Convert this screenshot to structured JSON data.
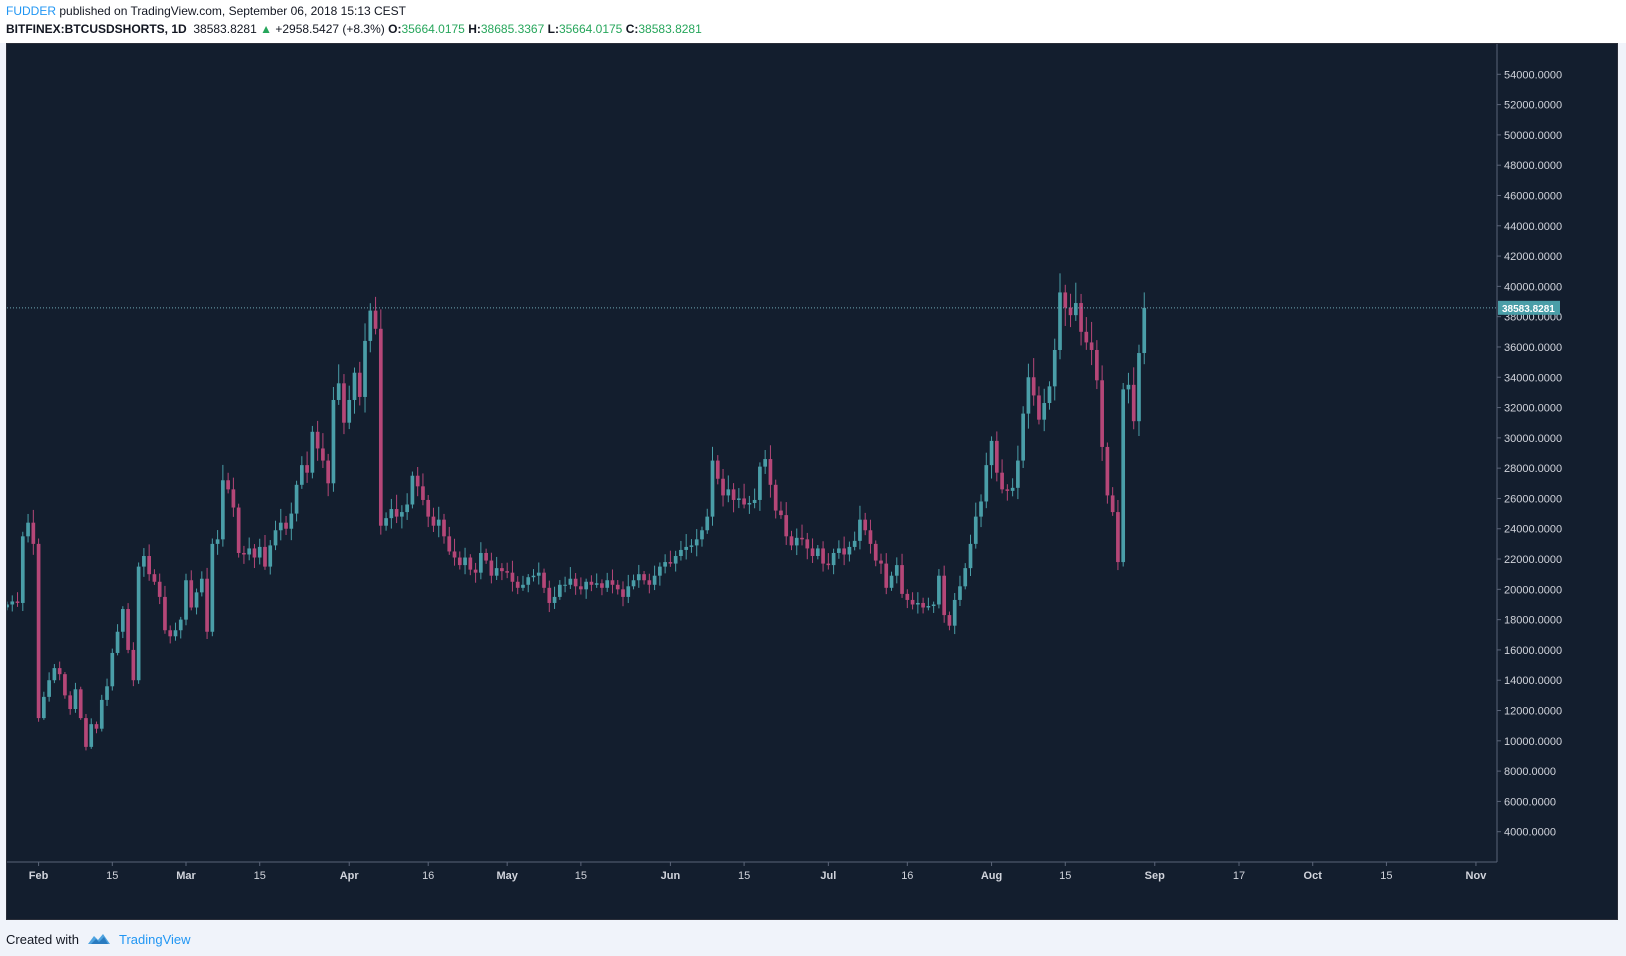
{
  "header": {
    "author": "FUDDER",
    "published_text": "published on TradingView.com, September 06, 2018 15:13 CEST",
    "symbol": "BITFINEX:BTCUSDSHORTS, 1D",
    "last": "38583.8281",
    "change": "+2958.5427 (+8.3%)",
    "o_label": "O:",
    "o_value": "35664.0175",
    "h_label": "H:",
    "h_value": "38685.3367",
    "l_label": "L:",
    "l_value": "35664.0175",
    "c_label": "C:",
    "c_value": "38583.8281"
  },
  "footer": {
    "created_with": "Created with",
    "brand": "TradingView"
  },
  "colors": {
    "background": "#131e2e",
    "up": "#4a9ea8",
    "down": "#b54778",
    "axis_text": "#d1d4dc",
    "price_line": "#6fa7b3"
  },
  "chart_data": {
    "type": "candlestick",
    "symbol": "BITFINEX:BTCUSDSHORTS",
    "interval": "1D",
    "last_price_label": "38583.8281",
    "y_axis": {
      "min": 2000,
      "max": 56000,
      "ticks": [
        "4000.0000",
        "6000.0000",
        "8000.0000",
        "10000.0000",
        "12000.0000",
        "14000.0000",
        "16000.0000",
        "18000.0000",
        "20000.0000",
        "22000.0000",
        "24000.0000",
        "26000.0000",
        "28000.0000",
        "30000.0000",
        "32000.0000",
        "34000.0000",
        "36000.0000",
        "38000.0000",
        "40000.0000",
        "42000.0000",
        "44000.0000",
        "46000.0000",
        "48000.0000",
        "50000.0000",
        "52000.0000",
        "54000.0000"
      ],
      "tick_values": [
        4000,
        6000,
        8000,
        10000,
        12000,
        14000,
        16000,
        18000,
        20000,
        22000,
        24000,
        26000,
        28000,
        30000,
        32000,
        34000,
        36000,
        38000,
        40000,
        42000,
        44000,
        46000,
        48000,
        50000,
        52000,
        54000
      ]
    },
    "x_axis": {
      "start_date": "2018-01-26",
      "end_date": "2018-11-05",
      "ticks": [
        {
          "date": "2018-02-01",
          "label": "Feb",
          "bold": true
        },
        {
          "date": "2018-02-15",
          "label": "15",
          "bold": false
        },
        {
          "date": "2018-03-01",
          "label": "Mar",
          "bold": true
        },
        {
          "date": "2018-03-15",
          "label": "15",
          "bold": false
        },
        {
          "date": "2018-04-01",
          "label": "Apr",
          "bold": true
        },
        {
          "date": "2018-04-16",
          "label": "16",
          "bold": false
        },
        {
          "date": "2018-05-01",
          "label": "May",
          "bold": true
        },
        {
          "date": "2018-05-15",
          "label": "15",
          "bold": false
        },
        {
          "date": "2018-06-01",
          "label": "Jun",
          "bold": true
        },
        {
          "date": "2018-06-15",
          "label": "15",
          "bold": false
        },
        {
          "date": "2018-07-01",
          "label": "Jul",
          "bold": true
        },
        {
          "date": "2018-07-16",
          "label": "16",
          "bold": false
        },
        {
          "date": "2018-08-01",
          "label": "Aug",
          "bold": true
        },
        {
          "date": "2018-08-15",
          "label": "15",
          "bold": false
        },
        {
          "date": "2018-09-01",
          "label": "Sep",
          "bold": true
        },
        {
          "date": "2018-09-17",
          "label": "17",
          "bold": false
        },
        {
          "date": "2018-10-01",
          "label": "Oct",
          "bold": true
        },
        {
          "date": "2018-10-15",
          "label": "15",
          "bold": false
        },
        {
          "date": "2018-11-01",
          "label": "Nov",
          "bold": true
        }
      ]
    },
    "close_series": {
      "first_date": "2018-01-26",
      "closes": [
        19000,
        19200,
        19100,
        23500,
        24400,
        23000,
        11500,
        12900,
        14000,
        14800,
        14400,
        13000,
        12100,
        13400,
        11500,
        9600,
        11100,
        10800,
        12700,
        13600,
        15800,
        17200,
        18700,
        16000,
        14000,
        21500,
        22200,
        21000,
        20500,
        19500,
        17300,
        16900,
        17300,
        18000,
        20600,
        18800,
        19800,
        20700,
        17200,
        23000,
        23300,
        27200,
        26600,
        25400,
        22400,
        22300,
        22700,
        22100,
        22800,
        21500,
        22900,
        23900,
        24400,
        24000,
        25000,
        26900,
        28200,
        27700,
        30400,
        29300,
        28500,
        27000,
        32500,
        33600,
        31000,
        32500,
        34300,
        32700,
        36400,
        38400,
        37200,
        24200,
        24700,
        25300,
        24800,
        25100,
        25600,
        27500,
        26800,
        25900,
        24800,
        24200,
        24600,
        23500,
        22500,
        22100,
        21600,
        22100,
        21300,
        21100,
        22400,
        21900,
        20900,
        21400,
        21200,
        21100,
        20500,
        20100,
        20300,
        20800,
        20900,
        21100,
        20100,
        19100,
        19500,
        20300,
        20300,
        20700,
        20200,
        20000,
        20500,
        20300,
        20400,
        20100,
        20600,
        20300,
        20000,
        19500,
        20200,
        20600,
        21000,
        20600,
        20300,
        20900,
        21500,
        21800,
        21700,
        22200,
        22600,
        22800,
        22900,
        23300,
        23900,
        24800,
        28500,
        27300,
        26200,
        26600,
        25900,
        26000,
        25600,
        25700,
        25900,
        28100,
        28600,
        26900,
        25200,
        24900,
        23500,
        22900,
        23400,
        23300,
        22700,
        22200,
        22700,
        21700,
        21600,
        22400,
        22700,
        22300,
        22800,
        23200,
        24600,
        23900,
        23000,
        21900,
        21700,
        20100,
        20900,
        21600,
        19700,
        19300,
        19000,
        19100,
        18800,
        18900,
        19000,
        20900,
        18300,
        17600,
        19300,
        20200,
        21400,
        23000,
        24800,
        25800,
        28200,
        29800,
        27700,
        26600,
        26500,
        26700,
        28500,
        31600,
        34000,
        32800,
        31200,
        32300,
        33400,
        35800,
        39600,
        38600,
        38100,
        38900,
        37000,
        36300,
        35800,
        33800,
        29400,
        26200,
        25100,
        21800,
        33200,
        33500,
        31100,
        35600,
        38583.8281
      ]
    }
  }
}
